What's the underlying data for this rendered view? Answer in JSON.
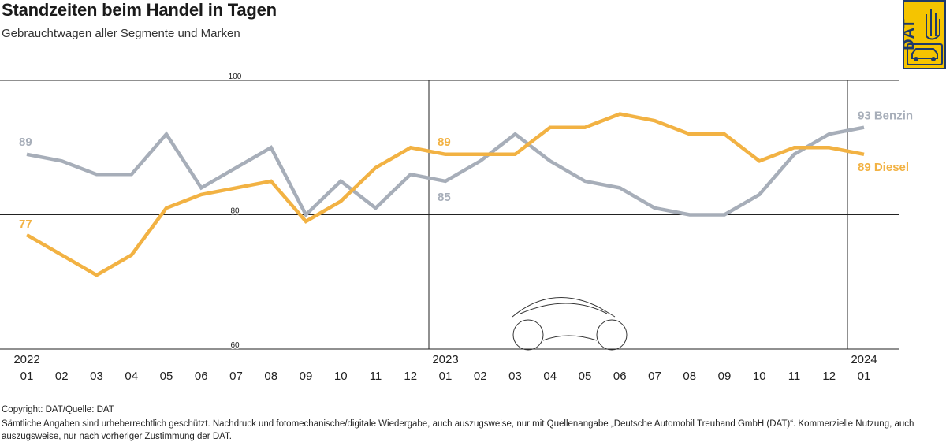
{
  "header": {
    "title": "Standzeiten beim Handel in Tagen",
    "subtitle": "Gebrauchtwagen aller Segmente und Marken"
  },
  "logo": {
    "text": "DAT",
    "icons": [
      "hand-icon",
      "car-icon"
    ]
  },
  "chart_data": {
    "type": "line",
    "x": [
      "01",
      "02",
      "03",
      "04",
      "05",
      "06",
      "07",
      "08",
      "09",
      "10",
      "11",
      "12",
      "01",
      "02",
      "03",
      "04",
      "05",
      "06",
      "07",
      "08",
      "09",
      "10",
      "11",
      "12",
      "01"
    ],
    "years": [
      {
        "label": "2022",
        "index": 0
      },
      {
        "label": "2023",
        "index": 12
      },
      {
        "label": "2024",
        "index": 24
      }
    ],
    "ylim": [
      60,
      100
    ],
    "yticks": [
      60,
      80,
      100
    ],
    "series": [
      {
        "name": "Benzin",
        "color": "#a7aeb9",
        "values": [
          89,
          88,
          86,
          86,
          92,
          84,
          87,
          90,
          80,
          85,
          81,
          86,
          85,
          88,
          92,
          88,
          85,
          84,
          81,
          80,
          80,
          83,
          89,
          92,
          93
        ]
      },
      {
        "name": "Diesel",
        "color": "#f2b243",
        "values": [
          77,
          74,
          71,
          74,
          81,
          83,
          84,
          85,
          79,
          82,
          87,
          90,
          89,
          89,
          89,
          93,
          93,
          95,
          94,
          92,
          92,
          88,
          90,
          90,
          89
        ]
      }
    ],
    "labels": [
      {
        "text": "89",
        "series": "Benzin",
        "index": 0
      },
      {
        "text": "77",
        "series": "Diesel",
        "index": 0
      },
      {
        "text": "89",
        "series": "Diesel",
        "index": 12
      },
      {
        "text": "85",
        "series": "Benzin",
        "index": 12
      },
      {
        "text": "93 Benzin",
        "series": "Benzin",
        "index": 24
      },
      {
        "text": "89 Diesel",
        "series": "Diesel",
        "index": 24
      }
    ],
    "grid": true
  },
  "footer": {
    "copyright": "Copyright: DAT/Quelle: DAT",
    "disclaimer": "Sämtliche Angaben sind urheberrechtlich geschützt. Nachdruck und fotomechanische/digitale Wiedergabe, auch auszugsweise, nur mit Quellenangabe „Deutsche Automobil Treuhand GmbH (DAT)“. Kommerzielle Nutzung, auch auszugsweise, nur nach vorheriger Zustimmung der DAT."
  }
}
